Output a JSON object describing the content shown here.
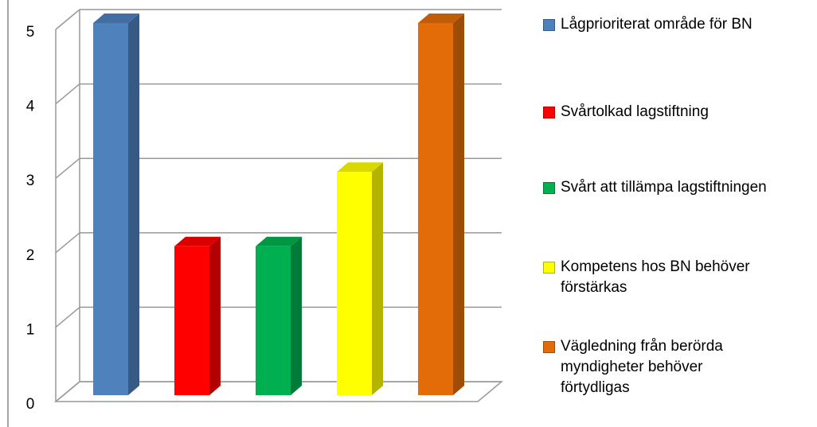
{
  "chart_data": {
    "type": "bar",
    "categories": [
      null
    ],
    "series": [
      {
        "name": "Lågprioriterat område för BN",
        "color": "#4f81bd",
        "values": [
          5
        ]
      },
      {
        "name": "Svårtolkad lagstiftning",
        "color": "#ff0000",
        "values": [
          2
        ]
      },
      {
        "name": "Svårt att tillämpa lagstiftningen",
        "color": "#00b050",
        "values": [
          2
        ]
      },
      {
        "name": "Kompetens hos BN behöver förstärkas",
        "color": "#ffff00",
        "values": [
          3
        ]
      },
      {
        "name": "Vägledning från berörda myndigheter behöver förtydligas",
        "color": "#e36c09",
        "values": [
          5
        ]
      }
    ],
    "ylim": [
      0,
      5
    ],
    "yticks": [
      0,
      1,
      2,
      3,
      4,
      5
    ],
    "grid": true,
    "legend": "right"
  }
}
